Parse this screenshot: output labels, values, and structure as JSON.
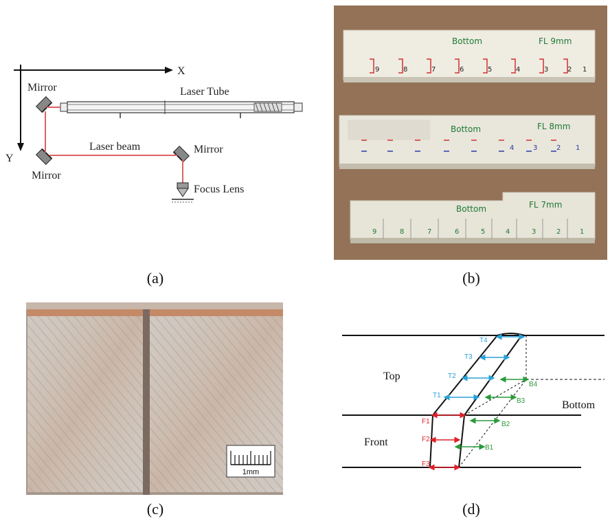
{
  "panel_a": {
    "axis_x": "X",
    "axis_y": "Y",
    "mirror_top_left": "Mirror",
    "mirror_bottom_left": "Mirror",
    "mirror_right": "Mirror",
    "laser_tube": "Laser Tube",
    "laser_beam": "Laser beam",
    "focus_lens": "Focus Lens"
  },
  "panel_b": {
    "strips": [
      {
        "side": "Bottom",
        "fl": "FL  9mm",
        "numbers": [
          "9",
          "8",
          "7",
          "6",
          "5",
          "4",
          "3",
          "2",
          "1"
        ]
      },
      {
        "side": "Bottom",
        "fl": "FL  8mm",
        "numbers": [
          "4",
          "3",
          "2",
          "1"
        ]
      },
      {
        "side": "Bottom",
        "fl": "FL  7mm",
        "numbers": [
          "9",
          "8",
          "7",
          "6",
          "5",
          "4",
          "3",
          "2",
          "1"
        ]
      }
    ]
  },
  "panel_c": {
    "scale_label": "1mm"
  },
  "panel_d": {
    "top": "Top",
    "front": "Front",
    "bottom": "Bottom",
    "t_labels": [
      "T4",
      "T3",
      "T2",
      "T1"
    ],
    "f_labels": [
      "F1",
      "F2",
      "F3"
    ],
    "b_labels": [
      "B4",
      "B3",
      "B2",
      "B1"
    ],
    "colors": {
      "t": "#2aa0d8",
      "f": "#e0202a",
      "b": "#2a9a3a"
    }
  },
  "captions": {
    "a": "(a)",
    "b": "(b)",
    "c": "(c)",
    "d": "(d)"
  }
}
